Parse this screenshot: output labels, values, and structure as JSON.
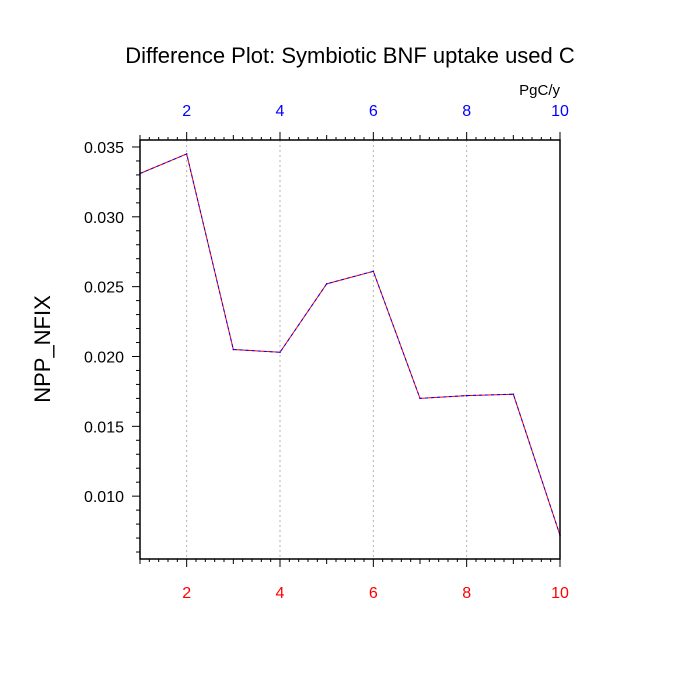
{
  "chart_data": {
    "type": "line",
    "title": "Difference Plot: Symbiotic BNF uptake used C",
    "ylabel": "NPP_NFIX",
    "top_axis_units": "PgC/y",
    "xlim": [
      1,
      10
    ],
    "ylim": [
      0.0055,
      0.0355
    ],
    "x_ticks": [
      2,
      4,
      6,
      8,
      10
    ],
    "x_tick_labels": [
      "2",
      "4",
      "6",
      "8",
      "10"
    ],
    "y_ticks": [
      0.01,
      0.015,
      0.02,
      0.025,
      0.03,
      0.035
    ],
    "y_tick_labels": [
      "0.010",
      "0.015",
      "0.020",
      "0.025",
      "0.030",
      "0.035"
    ],
    "grid": "vertical dashed at major x ticks",
    "series": [
      {
        "x": [
          1,
          2,
          3,
          4,
          5,
          6,
          7,
          8,
          9,
          10
        ],
        "values": [
          0.0331,
          0.0345,
          0.0205,
          0.0203,
          0.0252,
          0.0261,
          0.017,
          0.0172,
          0.0173,
          0.0072
        ],
        "colors": [
          "#ff0000",
          "#0000ff"
        ],
        "style": "dashed"
      }
    ],
    "colors": {
      "bottom_axis_labels": "#ff0000",
      "top_axis_labels": "#0000ff",
      "grid": "#b4b4b4",
      "axis": "#000000"
    }
  }
}
